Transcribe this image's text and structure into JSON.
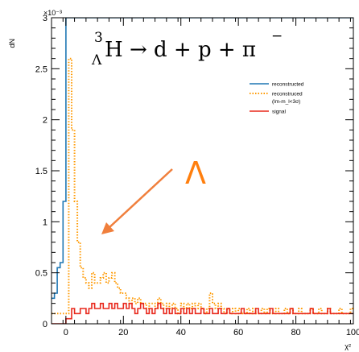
{
  "chart_data": {
    "type": "line",
    "title": "",
    "xlabel": "χ²",
    "ylabel": "dN",
    "y_exponent_label": "×10⁻³",
    "xlim": [
      -5,
      100
    ],
    "ylim": [
      0,
      0.003
    ],
    "y_display_scale": 1000,
    "x_ticks": [
      0,
      20,
      40,
      60,
      80,
      100
    ],
    "x_tick_labels": [
      "0",
      "20",
      "40",
      "60",
      "80",
      "100"
    ],
    "y_ticks": [
      0,
      0.0005,
      0.001,
      0.0015,
      0.002,
      0.0025,
      0.003
    ],
    "y_tick_labels": [
      "0",
      "0.5",
      "1",
      "1.5",
      "2",
      "2.5",
      "3"
    ],
    "grid": false,
    "legend_position": "top-right",
    "annotations": {
      "reaction_main": "H → d + p + π",
      "reaction_superscript": "3",
      "reaction_subscript": "Λ",
      "reaction_pi_sup": "−",
      "lambda_label": "Λ"
    },
    "series": [
      {
        "name": "reconstructed",
        "color": "#1f77b4",
        "style": "solid",
        "x": [
          -5,
          -4,
          -3,
          -2,
          -1,
          0,
          1,
          100
        ],
        "y": [
          0.00025,
          0.0003,
          0.00055,
          0.0006,
          0.0012,
          0.003,
          0.003,
          0.003
        ]
      },
      {
        "name": "reconstruced",
        "name_line2": "(lm-m_l<3σ)",
        "color": "#ff9900",
        "style": "dotted",
        "x": [
          -5,
          -4,
          -3,
          -2,
          -1,
          0,
          1,
          2,
          3,
          4,
          5,
          6,
          7,
          8,
          9,
          10,
          11,
          12,
          13,
          14,
          15,
          16,
          17,
          18,
          19,
          20,
          21,
          22,
          23,
          24,
          25,
          26,
          27,
          28,
          29,
          30,
          31,
          32,
          33,
          34,
          35,
          36,
          37,
          38,
          39,
          40,
          41,
          42,
          43,
          44,
          45,
          46,
          47,
          48,
          49,
          50,
          51,
          52,
          53,
          54,
          55,
          56,
          57,
          58,
          59,
          60,
          61,
          62,
          63,
          64,
          65,
          66,
          67,
          68,
          69,
          70,
          71,
          72,
          73,
          74,
          75,
          76,
          77,
          78,
          79,
          80,
          81,
          82,
          83,
          84,
          85,
          86,
          87,
          88,
          89,
          90,
          91,
          92,
          93,
          94,
          95,
          96,
          97,
          98,
          99
        ],
        "y": [
          0.0001,
          0.0001,
          0.0001,
          0.0001,
          0.0001,
          0.0001,
          0.0026,
          0.0019,
          0.0012,
          0.0008,
          0.00055,
          0.00045,
          0.0004,
          0.00035,
          0.0005,
          0.0004,
          0.0004,
          0.00045,
          0.0005,
          0.0004,
          0.00045,
          0.0005,
          0.0004,
          0.00035,
          0.0003,
          0.0003,
          0.00025,
          0.0002,
          0.00025,
          0.0002,
          0.00025,
          0.0002,
          0.0002,
          0.00015,
          0.0002,
          0.0002,
          0.00015,
          0.00025,
          0.0002,
          0.00015,
          0.0002,
          0.00015,
          0.0002,
          0.00015,
          0.0001,
          0.0002,
          0.00015,
          0.0002,
          0.00015,
          0.0002,
          0.00015,
          0.0002,
          0.00015,
          0.0001,
          0.00015,
          0.0003,
          0.0002,
          0.00015,
          0.0002,
          0.00015,
          0.0001,
          0.00015,
          0.0001,
          0.00015,
          0.0001,
          0.00015,
          0.0001,
          0.0001,
          0.00015,
          0.0001,
          0.00015,
          0.0001,
          0.0001,
          0.00015,
          0.0001,
          0.00015,
          0.0001,
          0.0001,
          0.00015,
          0.0001,
          0.0001,
          0.00015,
          0.0001,
          0.00015,
          0.0001,
          0.0001,
          0.00015,
          0.0001,
          0.0001,
          0.0001,
          0.00015,
          0.0001,
          0.0001,
          0.00015,
          0.0001,
          0.0001,
          0.00015,
          0.0001,
          0.0001,
          0.0001,
          0.00015,
          0.0001,
          0.0001,
          0.0001,
          0.00015
        ]
      },
      {
        "name": "signal",
        "color": "#e8281c",
        "style": "solid",
        "x": [
          -5,
          -4,
          -3,
          -2,
          -1,
          0,
          1,
          2,
          3,
          4,
          5,
          6,
          7,
          8,
          9,
          10,
          11,
          12,
          13,
          14,
          15,
          16,
          17,
          18,
          19,
          20,
          21,
          22,
          23,
          24,
          25,
          26,
          27,
          28,
          29,
          30,
          31,
          32,
          33,
          34,
          35,
          36,
          37,
          38,
          39,
          40,
          41,
          42,
          43,
          44,
          45,
          46,
          47,
          48,
          49,
          50,
          51,
          52,
          53,
          54,
          55,
          56,
          57,
          58,
          59,
          60,
          61,
          62,
          63,
          64,
          65,
          66,
          67,
          68,
          69,
          70,
          71,
          72,
          73,
          74,
          75,
          76,
          77,
          78,
          79,
          80,
          81,
          82,
          83,
          84,
          85,
          86,
          87,
          88,
          89,
          90,
          91,
          92,
          93,
          94,
          95,
          96,
          97,
          98,
          99
        ],
        "y": [
          0,
          0,
          0,
          0,
          0,
          5e-05,
          5e-05,
          0.00015,
          0.0001,
          0.0001,
          0.00015,
          0.00015,
          0.0001,
          0.00015,
          0.0002,
          0.00015,
          0.00015,
          0.0002,
          0.00015,
          0.00015,
          0.0002,
          0.00015,
          0.0002,
          0.00015,
          0.00015,
          0.0002,
          0.00015,
          0.0002,
          0.00015,
          0.0001,
          0.00015,
          0.0002,
          0.00015,
          0.0001,
          0.00015,
          0.0001,
          0.00015,
          0.0002,
          0.00015,
          0.0001,
          0.00015,
          0.0001,
          0.00015,
          0.0001,
          0.0001,
          0.00015,
          0.0001,
          0.00015,
          0.0001,
          0.00015,
          0.0001,
          0.0001,
          0.00015,
          0.0001,
          0.0001,
          0.00015,
          0.0001,
          0.0001,
          0.00015,
          0.0001,
          0.0001,
          0.00015,
          0.0001,
          0.0001,
          0.0001,
          0.0001,
          0.00015,
          0.0001,
          0.0001,
          0.0001,
          0.0001,
          0.00015,
          0.0001,
          0.0001,
          0.0001,
          0.0001,
          0.00015,
          0.0001,
          0.0001,
          0.0001,
          0.0001,
          0.0001,
          0.0001,
          0.00015,
          0.0001,
          0.0001,
          0.0001,
          0.0001,
          0.0001,
          0.0001,
          0.00015,
          0.0001,
          0.0001,
          0.0001,
          0.0001,
          0.0001,
          0.00015,
          0.0001,
          0.0001,
          0.0001,
          0.0001,
          0.0001,
          0.0001,
          0.0001,
          0.0001
        ]
      }
    ]
  }
}
